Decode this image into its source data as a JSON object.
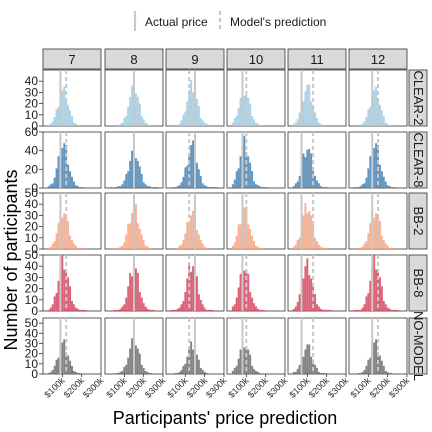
{
  "legend": {
    "actual_label": "Actual price",
    "predicted_label": "Model's prediction"
  },
  "chart_data": {
    "type": "histogram-facet-grid",
    "xlabel": "Participants' price prediction",
    "ylabel": "Number of participants",
    "columns": [
      "7",
      "8",
      "9",
      "10",
      "11",
      "12"
    ],
    "rows": [
      "CLEAR-2",
      "CLEAR-8",
      "BB-2",
      "BB-8",
      "NO-MODEL"
    ],
    "row_colors": [
      "#9ecae1",
      "#4682b4",
      "#f4a582",
      "#d6475f",
      "#6e6e6e"
    ],
    "line_color": "#c8c8c8",
    "xlim": [
      0,
      300000
    ],
    "x_ticks": [
      100000,
      200000,
      300000
    ],
    "x_tick_labels": [
      "$100k",
      "$200k",
      "$300k"
    ],
    "actual_price": [
      90000,
      150000,
      150000,
      80000,
      70000,
      120000
    ],
    "predicted_price": [
      120000,
      150000,
      120000,
      100000,
      130000,
      150000
    ],
    "y_ticks": [
      [
        0,
        10,
        20,
        30,
        40
      ],
      [
        0,
        20,
        40,
        60
      ],
      [
        0,
        10,
        20,
        30,
        40,
        50
      ],
      [
        0,
        10,
        20,
        30,
        40,
        50
      ],
      [
        0,
        10,
        20,
        30,
        40,
        50
      ]
    ],
    "ylim": [
      [
        0,
        50
      ],
      [
        0,
        60
      ],
      [
        0,
        50
      ],
      [
        0,
        50
      ],
      [
        0,
        55
      ]
    ],
    "grid": false
  }
}
